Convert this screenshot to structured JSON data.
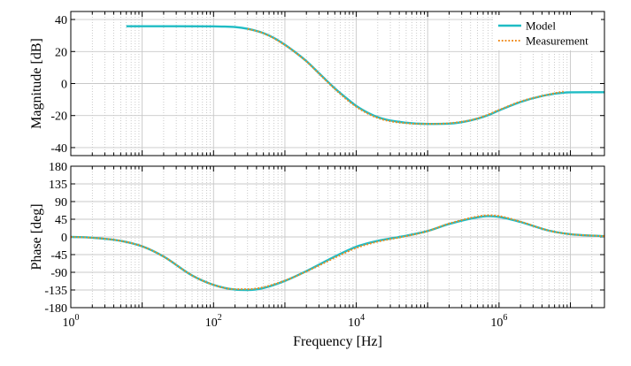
{
  "chart_data": {
    "type": "line",
    "x_scale": "log",
    "x_unit": "Hz",
    "xlabel": "Frequency [Hz]",
    "xlim": [
      1,
      30000000
    ],
    "x_tick_labels": [
      {
        "base": "10",
        "exp": "0"
      },
      {
        "base": "10",
        "exp": "2"
      },
      {
        "base": "10",
        "exp": "4"
      },
      {
        "base": "10",
        "exp": "6"
      }
    ],
    "x_tick_values": [
      1,
      100,
      10000,
      1000000
    ],
    "grid": true,
    "legend": {
      "placement": "top-right",
      "entries": [
        {
          "name": "Model",
          "color": "#1fbcc4",
          "style": "solid"
        },
        {
          "name": "Measurement",
          "color": "#f08c1e",
          "style": "dotted"
        }
      ]
    },
    "panels": [
      {
        "id": "magnitude",
        "ylabel": "Magnitude [dB]",
        "ylim": [
          -45,
          45
        ],
        "yticks": [
          -40,
          -20,
          0,
          20,
          40
        ],
        "series": [
          {
            "name": "Model",
            "x": [
              6,
              10,
              30,
              100,
              200,
              300,
              500,
              700,
              1000,
              1500,
              2000,
              3000,
              5000,
              7000,
              10000,
              20000,
              50000,
              100000,
              200000,
              400000,
              700000,
              1000000,
              2000000,
              4000000,
              7000000,
              10000000,
              30000000
            ],
            "y": [
              35.8,
              35.8,
              35.8,
              35.7,
              35.3,
              34.2,
              31.5,
              28.5,
              24.2,
              18.5,
              14,
              6.5,
              -3,
              -8.5,
              -14,
              -21,
              -24.5,
              -25.2,
              -25,
              -23,
              -19.8,
              -16.8,
              -11.5,
              -7.8,
              -6,
              -5.5,
              -5.4
            ]
          },
          {
            "name": "Measurement",
            "x": [
              300,
              500,
              1000,
              2000,
              3000,
              5000,
              10000,
              20000,
              50000,
              100000,
              200000,
              500000,
              1000000,
              2000000,
              5000000,
              8000000
            ],
            "y": [
              34.2,
              31.4,
              24,
              13.8,
              6.2,
              -3.4,
              -14.5,
              -21.5,
              -24.8,
              -25.2,
              -24.8,
              -21.8,
              -16.5,
              -11.2,
              -6.8,
              -5
            ]
          }
        ]
      },
      {
        "id": "phase",
        "ylabel": "Phase [deg]",
        "ylim": [
          -180,
          180
        ],
        "yticks": [
          -180,
          -135,
          -90,
          -45,
          0,
          45,
          90,
          135,
          180
        ],
        "series": [
          {
            "name": "Model",
            "x": [
              1,
              2,
              5,
              10,
              20,
              50,
              100,
              200,
              300,
              500,
              1000,
              2000,
              5000,
              10000,
              20000,
              50000,
              100000,
              200000,
              500000,
              700000,
              1000000,
              2000000,
              5000000,
              10000000,
              30000000
            ],
            "y": [
              0,
              -2,
              -10,
              -24,
              -50,
              -98,
              -122,
              -134,
              -135,
              -130,
              -112,
              -87,
              -50,
              -25,
              -10,
              3,
              15,
              33,
              50,
              53,
              51,
              38,
              16,
              7,
              2
            ]
          },
          {
            "name": "Measurement",
            "x": [
              1,
              2,
              5,
              10,
              20,
              50,
              100,
              200,
              300,
              500,
              1000,
              2000,
              5000,
              10000,
              20000,
              50000,
              100000,
              200000,
              500000,
              700000,
              1000000,
              2000000,
              5000000,
              10000000,
              30000000
            ],
            "y": [
              0,
              -2,
              -10,
              -24,
              -50,
              -98,
              -122,
              -133,
              -133,
              -128,
              -111,
              -88,
              -53,
              -28,
              -12,
              2,
              15,
              34,
              52,
              55,
              53,
              39,
              16,
              7,
              2
            ]
          }
        ]
      }
    ]
  }
}
